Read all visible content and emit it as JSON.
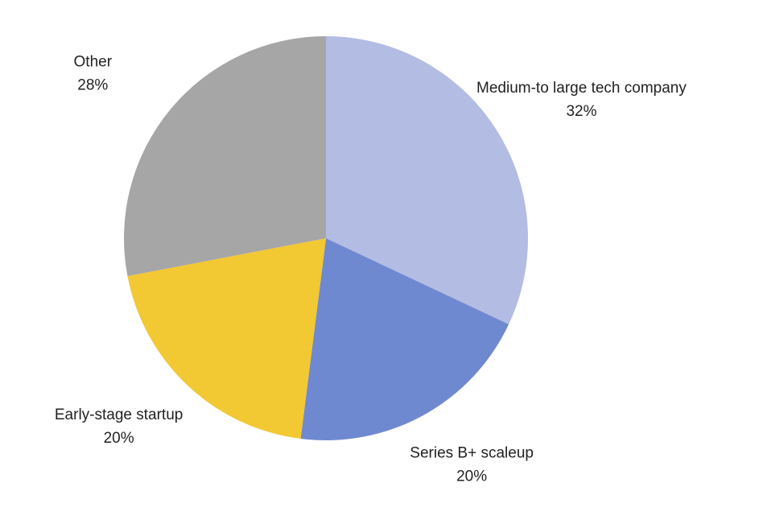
{
  "chart_data": {
    "type": "pie",
    "categories": [
      "Medium-to large tech company",
      "Series B+ scaleup",
      "Early-stage startup",
      "Other"
    ],
    "values": [
      32,
      20,
      20,
      28
    ],
    "value_labels": [
      "32%",
      "20%",
      "20%",
      "28%"
    ],
    "colors": [
      "#b3bce3",
      "#6f89d0",
      "#f2c833",
      "#a6a6a6"
    ]
  }
}
